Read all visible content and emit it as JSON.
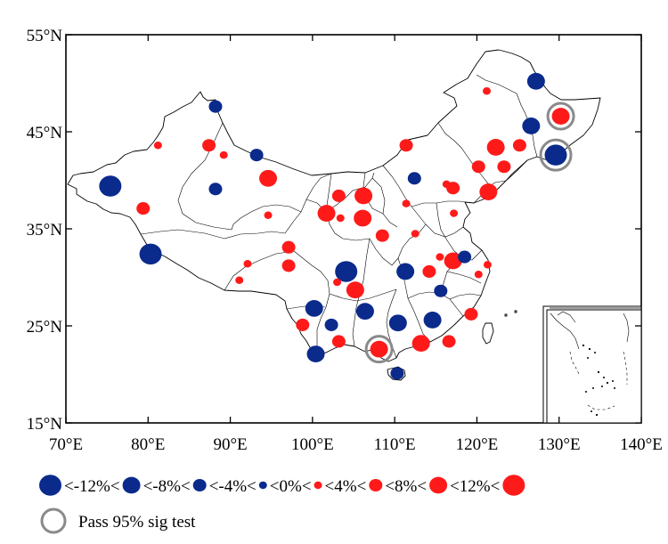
{
  "chart_data": {
    "type": "scatter",
    "title": "",
    "xlabel": "",
    "ylabel": "",
    "xlim": [
      70,
      140
    ],
    "ylim": [
      15,
      55
    ],
    "x_ticks": [
      {
        "value": 70,
        "label": "70°E"
      },
      {
        "value": 80,
        "label": "80°E"
      },
      {
        "value": 90,
        "label": "90°E"
      },
      {
        "value": 100,
        "label": "100°E"
      },
      {
        "value": 110,
        "label": "110°E"
      },
      {
        "value": 120,
        "label": "120°E"
      },
      {
        "value": 130,
        "label": "130°E"
      },
      {
        "value": 140,
        "label": "140°E"
      }
    ],
    "y_ticks": [
      {
        "value": 15,
        "label": "15°N"
      },
      {
        "value": 25,
        "label": "25°N"
      },
      {
        "value": 35,
        "label": "35°N"
      },
      {
        "value": 45,
        "label": "45°N"
      },
      {
        "value": 55,
        "label": "55°N"
      }
    ],
    "colors": {
      "negative": "#0a2a8c",
      "positive": "#ff1a1a",
      "sig_ring": "#8a8a8a"
    },
    "classes": [
      {
        "id": "n12",
        "sign": "neg",
        "size_rank": 4
      },
      {
        "id": "n8",
        "sign": "neg",
        "size_rank": 3
      },
      {
        "id": "n4",
        "sign": "neg",
        "size_rank": 2
      },
      {
        "id": "n0",
        "sign": "neg",
        "size_rank": 1
      },
      {
        "id": "p4",
        "sign": "pos",
        "size_rank": 1
      },
      {
        "id": "p8",
        "sign": "pos",
        "size_rank": 2
      },
      {
        "id": "p12",
        "sign": "pos",
        "size_rank": 3
      },
      {
        "id": "p12plus",
        "sign": "pos",
        "size_rank": 4
      }
    ],
    "legend": {
      "thresholds": [
        "<-12%<",
        "<-8%<",
        "<-4%<",
        "<0%<",
        "<4%<",
        "<8%<",
        "<12%<"
      ],
      "sig_label": "Pass 95% sig test"
    },
    "points": [
      {
        "lon": 127.2,
        "lat": 50.2,
        "cls": "n8"
      },
      {
        "lon": 121.2,
        "lat": 49.2,
        "cls": "p4"
      },
      {
        "lon": 130.2,
        "lat": 46.6,
        "cls": "p12",
        "sig": true
      },
      {
        "lon": 126.6,
        "lat": 45.6,
        "cls": "n8"
      },
      {
        "lon": 129.6,
        "lat": 42.6,
        "cls": "n12",
        "sig": true
      },
      {
        "lon": 88.2,
        "lat": 47.6,
        "cls": "n4"
      },
      {
        "lon": 81.2,
        "lat": 43.6,
        "cls": "p4"
      },
      {
        "lon": 87.4,
        "lat": 43.6,
        "cls": "p8"
      },
      {
        "lon": 89.2,
        "lat": 42.6,
        "cls": "p4"
      },
      {
        "lon": 93.2,
        "lat": 42.6,
        "cls": "n4"
      },
      {
        "lon": 75.4,
        "lat": 39.4,
        "cls": "n12"
      },
      {
        "lon": 88.2,
        "lat": 39.1,
        "cls": "n4"
      },
      {
        "lon": 94.6,
        "lat": 40.2,
        "cls": "p12"
      },
      {
        "lon": 79.4,
        "lat": 37.1,
        "cls": "p8"
      },
      {
        "lon": 94.6,
        "lat": 36.4,
        "cls": "p4"
      },
      {
        "lon": 80.3,
        "lat": 32.4,
        "cls": "n12"
      },
      {
        "lon": 111.4,
        "lat": 43.6,
        "cls": "p8"
      },
      {
        "lon": 112.4,
        "lat": 40.2,
        "cls": "n4"
      },
      {
        "lon": 122.3,
        "lat": 43.4,
        "cls": "p12"
      },
      {
        "lon": 125.2,
        "lat": 43.6,
        "cls": "p8"
      },
      {
        "lon": 123.3,
        "lat": 41.4,
        "cls": "p8"
      },
      {
        "lon": 120.2,
        "lat": 41.4,
        "cls": "p8"
      },
      {
        "lon": 116.3,
        "lat": 39.6,
        "cls": "p4"
      },
      {
        "lon": 117.1,
        "lat": 39.2,
        "cls": "p8"
      },
      {
        "lon": 121.4,
        "lat": 38.8,
        "cls": "p12"
      },
      {
        "lon": 103.2,
        "lat": 38.4,
        "cls": "p8"
      },
      {
        "lon": 106.2,
        "lat": 38.4,
        "cls": "p12"
      },
      {
        "lon": 101.7,
        "lat": 36.6,
        "cls": "p12"
      },
      {
        "lon": 103.4,
        "lat": 36.1,
        "cls": "p4"
      },
      {
        "lon": 106.1,
        "lat": 36.1,
        "cls": "p12"
      },
      {
        "lon": 111.4,
        "lat": 37.6,
        "cls": "p4"
      },
      {
        "lon": 117.2,
        "lat": 36.6,
        "cls": "p4"
      },
      {
        "lon": 108.5,
        "lat": 34.3,
        "cls": "p8"
      },
      {
        "lon": 112.5,
        "lat": 34.5,
        "cls": "p4"
      },
      {
        "lon": 97.1,
        "lat": 33.1,
        "cls": "p8"
      },
      {
        "lon": 92.1,
        "lat": 31.4,
        "cls": "p4"
      },
      {
        "lon": 97.1,
        "lat": 31.2,
        "cls": "p8"
      },
      {
        "lon": 104.1,
        "lat": 30.6,
        "cls": "n12"
      },
      {
        "lon": 111.3,
        "lat": 30.6,
        "cls": "n8"
      },
      {
        "lon": 114.2,
        "lat": 30.6,
        "cls": "p8"
      },
      {
        "lon": 117.1,
        "lat": 31.7,
        "cls": "p12"
      },
      {
        "lon": 115.5,
        "lat": 32.1,
        "cls": "p4"
      },
      {
        "lon": 118.5,
        "lat": 32.1,
        "cls": "n4"
      },
      {
        "lon": 121.3,
        "lat": 31.3,
        "cls": "p4"
      },
      {
        "lon": 120.2,
        "lat": 30.3,
        "cls": "p4"
      },
      {
        "lon": 91.1,
        "lat": 29.7,
        "cls": "p4"
      },
      {
        "lon": 103.0,
        "lat": 29.5,
        "cls": "p4"
      },
      {
        "lon": 105.2,
        "lat": 28.7,
        "cls": "p12"
      },
      {
        "lon": 115.6,
        "lat": 28.6,
        "cls": "n4"
      },
      {
        "lon": 100.2,
        "lat": 26.8,
        "cls": "n8"
      },
      {
        "lon": 106.4,
        "lat": 26.5,
        "cls": "n8"
      },
      {
        "lon": 119.3,
        "lat": 26.2,
        "cls": "p8"
      },
      {
        "lon": 102.3,
        "lat": 25.1,
        "cls": "n4"
      },
      {
        "lon": 98.8,
        "lat": 25.1,
        "cls": "p8"
      },
      {
        "lon": 110.4,
        "lat": 25.3,
        "cls": "n8"
      },
      {
        "lon": 114.6,
        "lat": 25.6,
        "cls": "n8"
      },
      {
        "lon": 103.2,
        "lat": 23.4,
        "cls": "p8"
      },
      {
        "lon": 108.1,
        "lat": 22.6,
        "cls": "p12",
        "sig": true
      },
      {
        "lon": 113.2,
        "lat": 23.2,
        "cls": "p12"
      },
      {
        "lon": 116.6,
        "lat": 23.4,
        "cls": "p8"
      },
      {
        "lon": 100.4,
        "lat": 22.1,
        "cls": "n8"
      },
      {
        "lon": 110.3,
        "lat": 20.1,
        "cls": "n4"
      }
    ]
  }
}
